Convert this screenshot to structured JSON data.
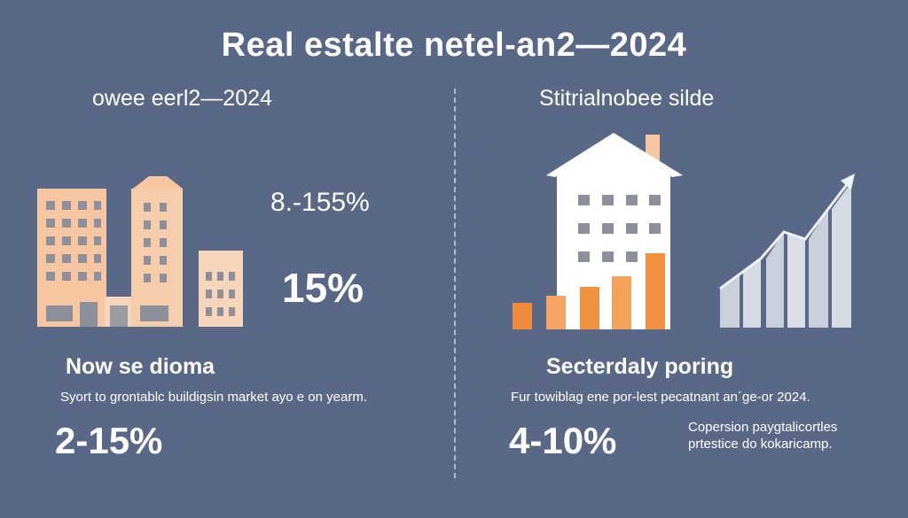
{
  "title": "Real estalte netel-an2—2024",
  "left": {
    "subtitle": "owee eerl2—2024",
    "stat_primary": "8.-155%",
    "stat_secondary": "15%",
    "heading": "Now se dioma",
    "description": "Syort to grontablc buildigsin market ayo e on yearm.",
    "stat_bottom": "2-15%"
  },
  "right": {
    "subtitle": "Stitrialnobee silde",
    "heading": "Secterdaly poring",
    "description": "Fur towiblag ene por-lest pecatnant an´ge-or 2024.",
    "stat_bottom": "4-10%",
    "note": "Copersion paygtalicortles prtestice do kokaricamp."
  },
  "colors": {
    "background": "#5a6888",
    "peach": "#f5c6a0",
    "orange": "#f0913f",
    "pale_blue": "#c9d0dc"
  },
  "illustrations": [
    "buildings-illustration",
    "house-bar-chart-illustration",
    "growth-chart-illustration"
  ]
}
